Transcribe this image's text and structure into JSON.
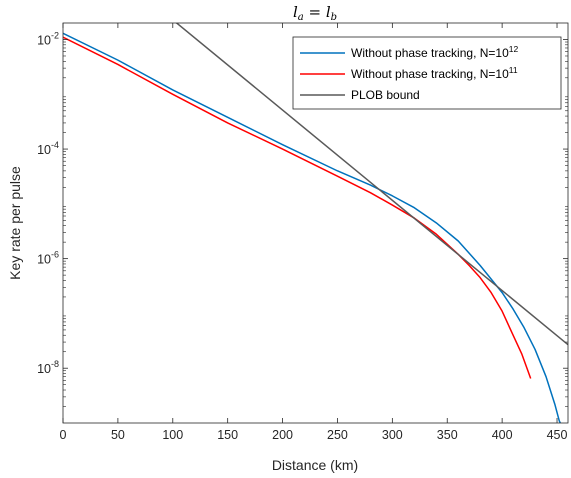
{
  "chart_data": {
    "type": "line",
    "title": "l_a = l_b",
    "title_parts": {
      "left": "l",
      "left_sub": "a",
      "eq": " = ",
      "right": "l",
      "right_sub": "b"
    },
    "xlabel": "Distance (km)",
    "ylabel": "Key rate per pulse",
    "xlim": [
      0,
      460
    ],
    "ylim": [
      1e-09,
      0.02
    ],
    "yscale": "log",
    "grid": false,
    "legend_position": "top-right",
    "x_ticks": [
      0,
      50,
      100,
      150,
      200,
      250,
      300,
      350,
      400,
      450
    ],
    "x_tick_labels": [
      "0",
      "50",
      "100",
      "150",
      "200",
      "250",
      "300",
      "350",
      "400",
      "450"
    ],
    "y_ticks": [
      {
        "value": 0.01,
        "base": "10",
        "exp": "-2"
      },
      {
        "value": 0.0001,
        "base": "10",
        "exp": "-4"
      },
      {
        "value": 1e-06,
        "base": "10",
        "exp": "-6"
      },
      {
        "value": 1e-08,
        "base": "10",
        "exp": "-8"
      }
    ],
    "series": [
      {
        "name": "Without phase tracking, N=10^12",
        "label_text": "Without phase tracking, N=10",
        "label_sup": "12",
        "color": "#0072bd",
        "x": [
          0,
          50,
          100,
          150,
          200,
          250,
          280,
          300,
          320,
          340,
          360,
          380,
          400,
          410,
          420,
          430,
          440,
          448,
          452,
          454
        ],
        "y": [
          0.013,
          0.0042,
          0.0012,
          0.00038,
          0.00012,
          4e-05,
          2.2e-05,
          1.4e-05,
          8.5e-06,
          4.5e-06,
          2.1e-06,
          7.5e-07,
          2.4e-07,
          1.2e-07,
          5.5e-08,
          2.2e-08,
          7e-09,
          2.2e-09,
          1.1e-09,
          9e-10
        ]
      },
      {
        "name": "Without phase tracking, N=10^11",
        "label_text": "Without phase tracking, N=10",
        "label_sup": "11",
        "color": "#ff0000",
        "x": [
          0,
          50,
          100,
          150,
          200,
          250,
          280,
          300,
          320,
          340,
          360,
          370,
          380,
          390,
          400,
          410,
          418,
          423,
          426
        ],
        "y": [
          0.011,
          0.0035,
          0.001,
          0.0003,
          0.0001,
          3.2e-05,
          1.6e-05,
          9.5e-06,
          5.5e-06,
          2.8e-06,
          1.2e-06,
          7.5e-07,
          4.5e-07,
          2.4e-07,
          1.1e-07,
          4e-08,
          1.8e-08,
          9.5e-09,
          6.5e-09
        ]
      },
      {
        "name": "PLOB bound",
        "label_text": "PLOB bound",
        "color": "#595959",
        "x": [
          101,
          460
        ],
        "y": [
          0.022,
          2.69e-08
        ]
      }
    ]
  }
}
